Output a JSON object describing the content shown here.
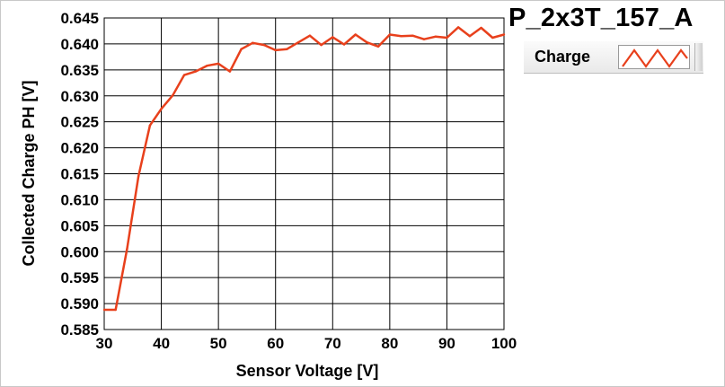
{
  "chart_data": {
    "type": "line",
    "title": "P_2x3T_157_A",
    "xlabel": "Sensor Voltage [V]",
    "ylabel": "Collected Charge PH [V]",
    "xlim": [
      30,
      100
    ],
    "ylim": [
      0.585,
      0.645
    ],
    "xticks": [
      "30",
      "40",
      "50",
      "60",
      "70",
      "80",
      "90",
      "100"
    ],
    "yticks": [
      "0.585",
      "0.590",
      "0.595",
      "0.600",
      "0.605",
      "0.610",
      "0.615",
      "0.620",
      "0.625",
      "0.630",
      "0.635",
      "0.640",
      "0.645"
    ],
    "grid": true,
    "legend_position": "top-right",
    "series": [
      {
        "name": "Charge",
        "color": "#e8401c",
        "x": [
          30,
          32,
          34,
          36,
          38,
          40,
          42,
          44,
          46,
          48,
          50,
          52,
          54,
          56,
          58,
          60,
          62,
          64,
          66,
          68,
          70,
          72,
          74,
          76,
          78,
          80,
          82,
          84,
          86,
          88,
          90,
          92,
          94,
          96,
          98,
          100
        ],
        "y": [
          0.5888,
          0.5888,
          0.6005,
          0.6145,
          0.6243,
          0.6275,
          0.6301,
          0.634,
          0.6347,
          0.6358,
          0.6362,
          0.6347,
          0.639,
          0.6402,
          0.6398,
          0.6388,
          0.639,
          0.6403,
          0.6416,
          0.6398,
          0.6413,
          0.6399,
          0.6418,
          0.6403,
          0.6395,
          0.6418,
          0.6415,
          0.6416,
          0.6409,
          0.6414,
          0.6412,
          0.6432,
          0.6415,
          0.6431,
          0.6412,
          0.6418
        ]
      }
    ]
  },
  "legend": {
    "label": "Charge"
  },
  "colors": {
    "series": "#e8401c",
    "grid": "#000000",
    "legend_bg": "#f0f0f0"
  }
}
